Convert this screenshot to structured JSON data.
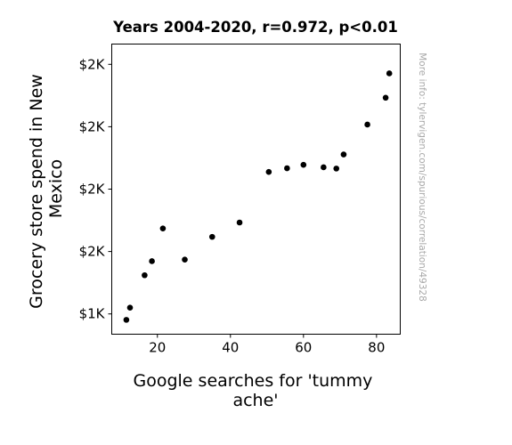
{
  "chart_data": {
    "type": "scatter",
    "title": "Years 2004-2020, r=0.972, p<0.01",
    "xlabel": [
      "Google searches for 'tummy",
      "ache'"
    ],
    "ylabel": [
      "Grocery store spend in New",
      "Mexico"
    ],
    "watermark": "More info: tylervigen.com/spurious/correlation/49328",
    "xlim": [
      7.5,
      86.5
    ],
    "ylim": [
      1385,
      2315
    ],
    "x_ticks": [
      {
        "value": 20,
        "label": "20"
      },
      {
        "value": 40,
        "label": "40"
      },
      {
        "value": 60,
        "label": "60"
      },
      {
        "value": 80,
        "label": "80"
      }
    ],
    "y_ticks": [
      {
        "value": 1450,
        "label": "$1K"
      },
      {
        "value": 1650,
        "label": "$2K"
      },
      {
        "value": 1850,
        "label": "$2K"
      },
      {
        "value": 2050,
        "label": "$2K"
      },
      {
        "value": 2250,
        "label": "$2K"
      }
    ],
    "points": [
      {
        "x": 11.5,
        "y": 1431
      },
      {
        "x": 12.5,
        "y": 1470
      },
      {
        "x": 16.5,
        "y": 1574
      },
      {
        "x": 18.5,
        "y": 1619
      },
      {
        "x": 21.5,
        "y": 1724
      },
      {
        "x": 27.5,
        "y": 1624
      },
      {
        "x": 35,
        "y": 1697
      },
      {
        "x": 42.5,
        "y": 1743
      },
      {
        "x": 50.5,
        "y": 1905
      },
      {
        "x": 55.5,
        "y": 1917
      },
      {
        "x": 60,
        "y": 1928
      },
      {
        "x": 65.5,
        "y": 1920
      },
      {
        "x": 69,
        "y": 1916
      },
      {
        "x": 71,
        "y": 1961
      },
      {
        "x": 77.5,
        "y": 2057
      },
      {
        "x": 82.5,
        "y": 2143
      },
      {
        "x": 83.5,
        "y": 2221
      }
    ],
    "marker_color": "#000000",
    "grid": false
  }
}
